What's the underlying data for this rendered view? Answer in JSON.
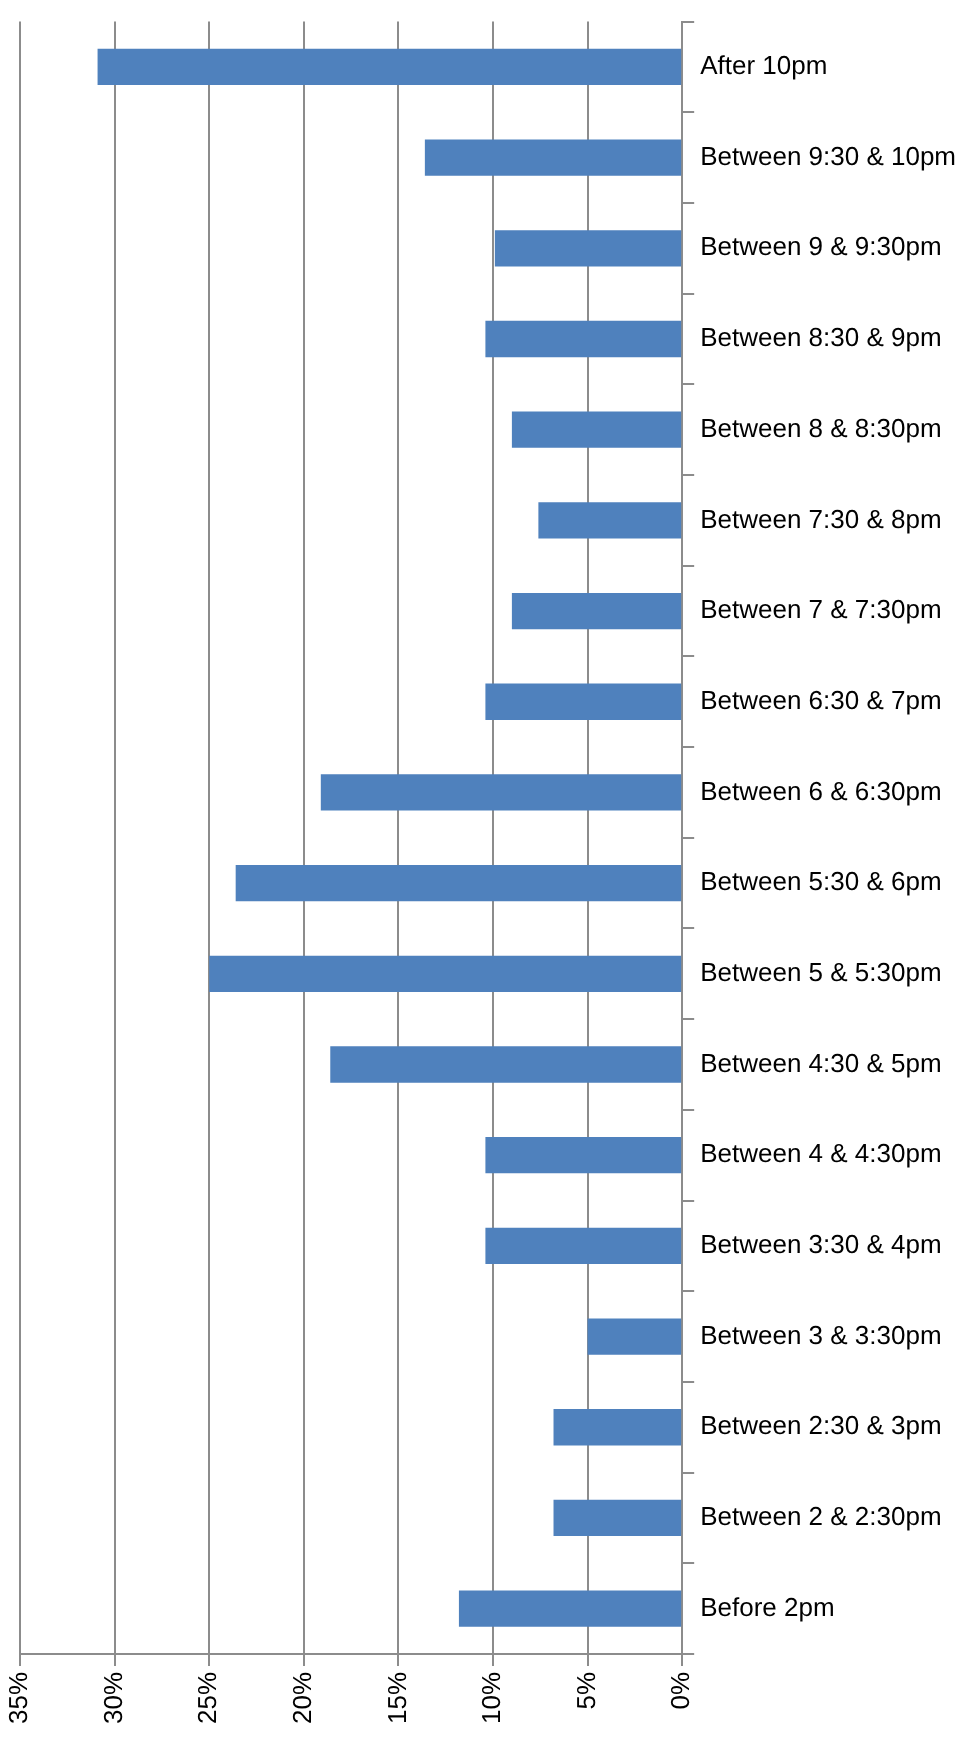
{
  "chart_data": {
    "type": "bar",
    "orientation": "horizontal",
    "color": "#4f81bd",
    "categories": [
      "After 10pm",
      "Between 9:30 & 10pm",
      "Between 9 & 9:30pm",
      "Between 8:30 & 9pm",
      "Between 8 & 8:30pm",
      "Between 7:30 & 8pm",
      "Between 7 & 7:30pm",
      "Between 6:30 & 7pm",
      "Between 6 & 6:30pm",
      "Between 5:30 & 6pm",
      "Between 5 & 5:30pm",
      "Between 4:30 & 5pm",
      "Between 4 & 4:30pm",
      "Between 3:30 & 4pm",
      "Between 3 & 3:30pm",
      "Between 2:30 & 3pm",
      "Between 2 & 2:30pm",
      "Before 2pm"
    ],
    "values": [
      30.9,
      13.6,
      9.9,
      10.4,
      9.0,
      7.6,
      9.0,
      10.4,
      19.1,
      23.6,
      25.0,
      18.6,
      10.4,
      10.4,
      5.0,
      6.8,
      6.8,
      11.8
    ],
    "xlim": [
      35,
      0
    ],
    "xticks": [
      {
        "value": 0,
        "label": "0%"
      },
      {
        "value": 5,
        "label": "5%"
      },
      {
        "value": 10,
        "label": "10%"
      },
      {
        "value": 15,
        "label": "15%"
      },
      {
        "value": 20,
        "label": "20%"
      },
      {
        "value": 25,
        "label": "25%"
      },
      {
        "value": 30,
        "label": "30%"
      },
      {
        "value": 35,
        "label": "35%"
      }
    ],
    "grid": "x",
    "legend": false
  }
}
